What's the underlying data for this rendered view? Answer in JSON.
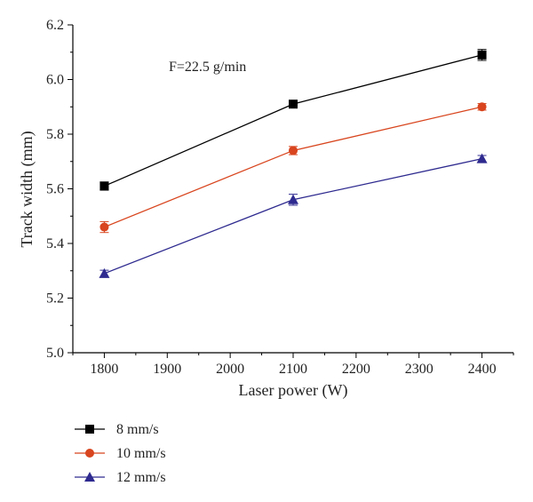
{
  "chart_data": {
    "type": "line",
    "xlabel": "Laser power (W)",
    "ylabel": "Track width (mm)",
    "xlim": [
      1750,
      2450
    ],
    "ylim": [
      5.0,
      6.2
    ],
    "x_ticks": [
      1800,
      1900,
      2000,
      2100,
      2200,
      2300,
      2400
    ],
    "x_tick_labels": [
      "1800",
      "1900",
      "2000",
      "2100",
      "2200",
      "2300",
      "2400"
    ],
    "y_ticks": [
      5.0,
      5.2,
      5.4,
      5.6,
      5.8,
      6.0,
      6.2
    ],
    "y_tick_labels": [
      "5.0",
      "5.2",
      "5.4",
      "5.6",
      "5.8",
      "6.0",
      "6.2"
    ],
    "annotation": "F=22.5 g/min",
    "grid": false,
    "legend_position": "bottom-left below plot",
    "x": [
      1800,
      2100,
      2400
    ],
    "series": [
      {
        "name": "8 mm/s",
        "values": [
          5.61,
          5.91,
          6.09
        ],
        "errors": [
          0.015,
          0.01,
          0.02
        ],
        "color": "#000000",
        "marker": "square"
      },
      {
        "name": "10 mm/s",
        "values": [
          5.46,
          5.74,
          5.9
        ],
        "errors": [
          0.02,
          0.015,
          0.012
        ],
        "color": "#d8451e",
        "marker": "circle"
      },
      {
        "name": "12 mm/s",
        "values": [
          5.29,
          5.56,
          5.71
        ],
        "errors": [
          0.012,
          0.02,
          0.012
        ],
        "color": "#2e2a8f",
        "marker": "triangle"
      }
    ]
  }
}
